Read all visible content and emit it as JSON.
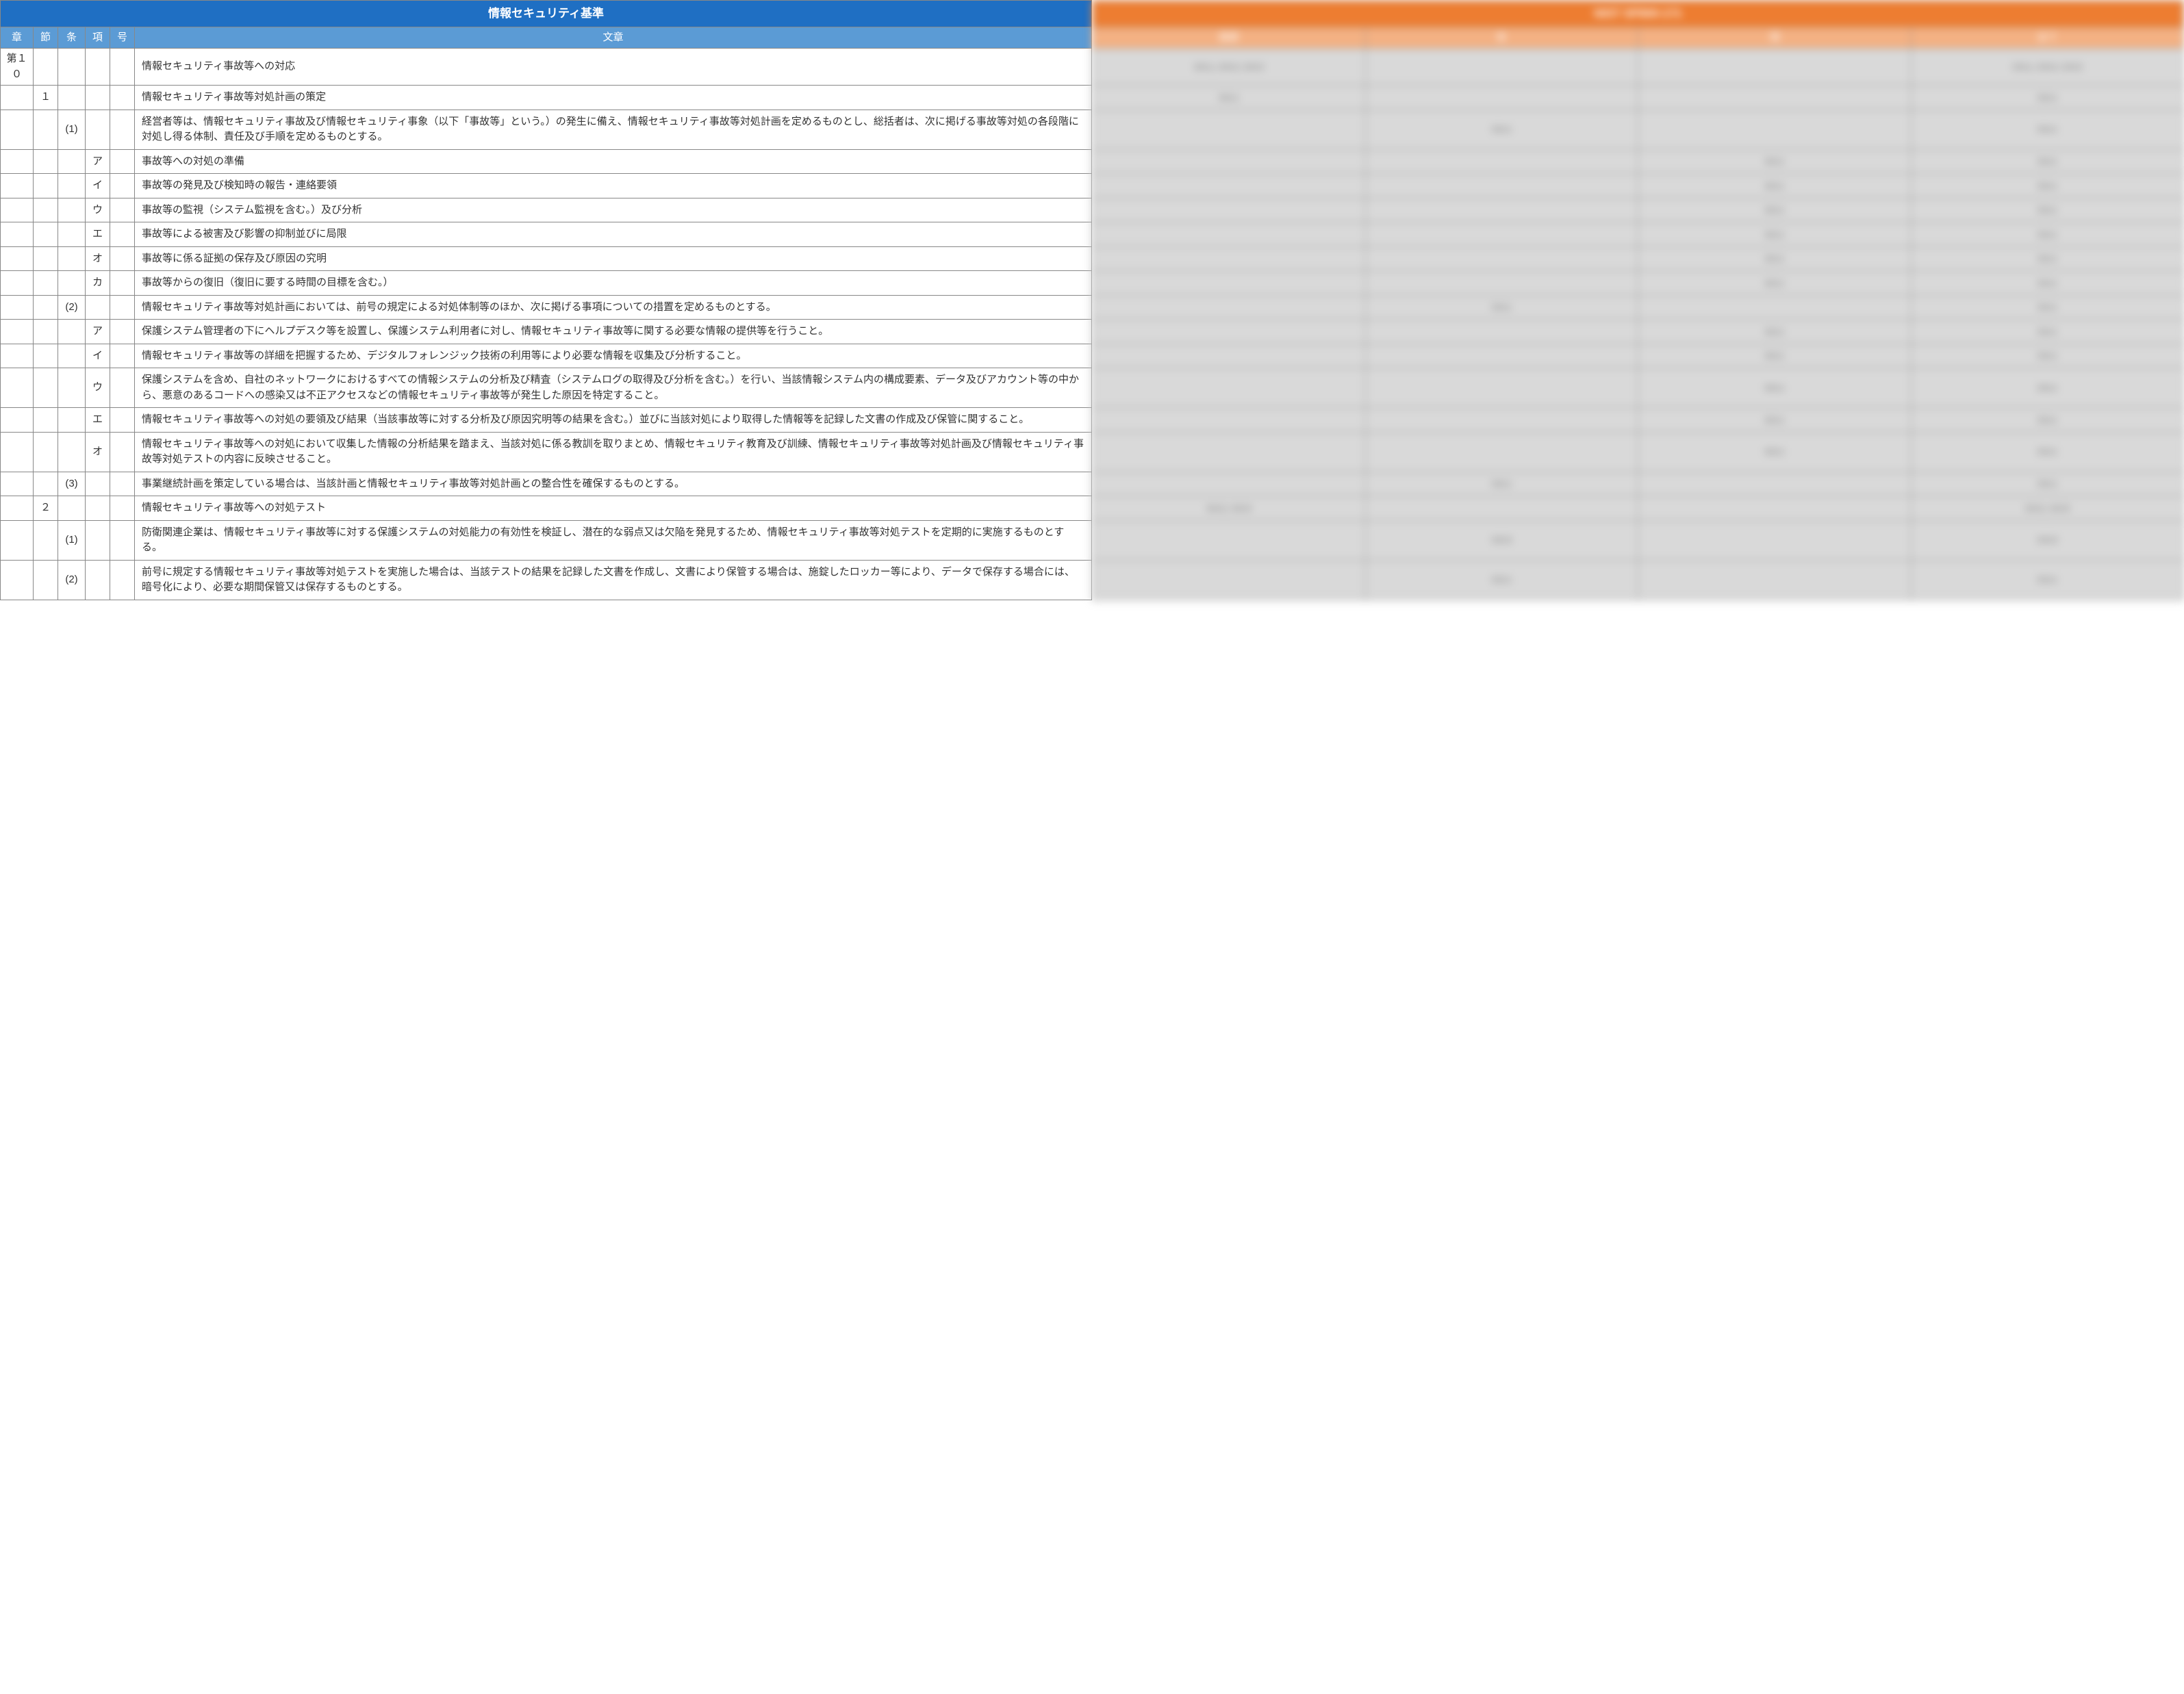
{
  "left": {
    "title": "情報セキュリティ基準",
    "headers": {
      "sho": "章",
      "setsu": "節",
      "jou": "条",
      "kou": "項",
      "gou": "号",
      "text": "文章"
    },
    "rows": [
      {
        "sho": "第１０",
        "setsu": "",
        "jou": "",
        "kou": "",
        "gou": "",
        "text": "情報セキュリティ事故等への対応"
      },
      {
        "sho": "",
        "setsu": "１",
        "jou": "",
        "kou": "",
        "gou": "",
        "text": "情報セキュリティ事故等対処計画の策定"
      },
      {
        "sho": "",
        "setsu": "",
        "jou": "(1)",
        "kou": "",
        "gou": "",
        "text": "経営者等は、情報セキュリティ事故及び情報セキュリティ事象（以下「事故等」という。）の発生に備え、情報セキュリティ事故等対処計画を定めるものとし、総括者は、次に掲げる事故等対処の各段階に対処し得る体制、責任及び手順を定めるものとする。"
      },
      {
        "sho": "",
        "setsu": "",
        "jou": "",
        "kou": "ア",
        "gou": "",
        "text": "事故等への対処の準備"
      },
      {
        "sho": "",
        "setsu": "",
        "jou": "",
        "kou": "イ",
        "gou": "",
        "text": "事故等の発見及び検知時の報告・連絡要領"
      },
      {
        "sho": "",
        "setsu": "",
        "jou": "",
        "kou": "ウ",
        "gou": "",
        "text": "事故等の監視（システム監視を含む。）及び分析"
      },
      {
        "sho": "",
        "setsu": "",
        "jou": "",
        "kou": "エ",
        "gou": "",
        "text": "事故等による被害及び影響の抑制並びに局限"
      },
      {
        "sho": "",
        "setsu": "",
        "jou": "",
        "kou": "オ",
        "gou": "",
        "text": "事故等に係る証拠の保存及び原因の究明"
      },
      {
        "sho": "",
        "setsu": "",
        "jou": "",
        "kou": "カ",
        "gou": "",
        "text": "事故等からの復旧（復旧に要する時間の目標を含む。）"
      },
      {
        "sho": "",
        "setsu": "",
        "jou": "(2)",
        "kou": "",
        "gou": "",
        "text": "情報セキュリティ事故等対処計画においては、前号の規定による対処体制等のほか、次に掲げる事項についての措置を定めるものとする。"
      },
      {
        "sho": "",
        "setsu": "",
        "jou": "",
        "kou": "ア",
        "gou": "",
        "text": "保護システム管理者の下にヘルプデスク等を設置し、保護システム利用者に対し、情報セキュリティ事故等に関する必要な情報の提供等を行うこと。"
      },
      {
        "sho": "",
        "setsu": "",
        "jou": "",
        "kou": "イ",
        "gou": "",
        "text": "情報セキュリティ事故等の詳細を把握するため、デジタルフォレンジック技術の利用等により必要な情報を収集及び分析すること。"
      },
      {
        "sho": "",
        "setsu": "",
        "jou": "",
        "kou": "ウ",
        "gou": "",
        "text": "保護システムを含め、自社のネットワークにおけるすべての情報システムの分析及び精査（システムログの取得及び分析を含む。）を行い、当該情報システム内の構成要素、データ及びアカウント等の中から、悪意のあるコードへの感染又は不正アクセスなどの情報セキュリティ事故等が発生した原因を特定すること。"
      },
      {
        "sho": "",
        "setsu": "",
        "jou": "",
        "kou": "エ",
        "gou": "",
        "text": "情報セキュリティ事故等への対処の要領及び結果（当該事故等に対する分析及び原因究明等の結果を含む。）並びに当該対処により取得した情報等を記録した文書の作成及び保管に関すること。"
      },
      {
        "sho": "",
        "setsu": "",
        "jou": "",
        "kou": "オ",
        "gou": "",
        "text": "情報セキュリティ事故等への対処において収集した情報の分析結果を踏まえ、当該対処に係る教訓を取りまとめ、情報セキュリティ教育及び訓練、情報セキュリティ事故等対処計画及び情報セキュリティ事故等対処テストの内容に反映させること。"
      },
      {
        "sho": "",
        "setsu": "",
        "jou": "(3)",
        "kou": "",
        "gou": "",
        "text": "事業継続計画を策定している場合は、当該計画と情報セキュリティ事故等対処計画との整合性を確保するものとする。"
      },
      {
        "sho": "",
        "setsu": "２",
        "jou": "",
        "kou": "",
        "gou": "",
        "text": "情報セキュリティ事故等への対処テスト"
      },
      {
        "sho": "",
        "setsu": "",
        "jou": "(1)",
        "kou": "",
        "gou": "",
        "text": "防衛関連企業は、情報セキュリティ事故等に対する保護システムの対処能力の有効性を検証し、潜在的な弱点又は欠陥を発見するため、情報セキュリティ事故等対処テストを定期的に実施するものとする。"
      },
      {
        "sho": "",
        "setsu": "",
        "jou": "(2)",
        "kou": "",
        "gou": "",
        "text": "前号に規定する情報セキュリティ事故等対処テストを実施した場合は、当該テストの結果を記録した文書を作成し、文書により保管する場合は、施錠したロッカー等により、データで保存する場合には、暗号化により、必要な期間保管又は保存するものとする。"
      }
    ]
  },
  "right": {
    "title": "NIST SP800-171",
    "headers": {
      "c1": "章節",
      "c2": "条",
      "c3": "項",
      "c4": "全て"
    },
    "rows": [
      {
        "c1": "3.6.1, 3.6.2, 3.6.3",
        "c2": "",
        "c3": "",
        "c4": "3.6.1, 3.6.2, 3.6.3"
      },
      {
        "c1": "3.6.1",
        "c2": "",
        "c3": "",
        "c4": "3.6.1"
      },
      {
        "c1": "",
        "c2": "3.6.1",
        "c3": "",
        "c4": "3.6.1"
      },
      {
        "c1": "",
        "c2": "",
        "c3": "3.6.1",
        "c4": "3.6.1"
      },
      {
        "c1": "",
        "c2": "",
        "c3": "3.6.1",
        "c4": "3.6.1"
      },
      {
        "c1": "",
        "c2": "",
        "c3": "3.6.1",
        "c4": "3.6.1"
      },
      {
        "c1": "",
        "c2": "",
        "c3": "3.6.1",
        "c4": "3.6.1"
      },
      {
        "c1": "",
        "c2": "",
        "c3": "3.6.1",
        "c4": "3.6.1"
      },
      {
        "c1": "",
        "c2": "",
        "c3": "3.6.1",
        "c4": "3.6.1"
      },
      {
        "c1": "",
        "c2": "3.6.1",
        "c3": "",
        "c4": "3.6.1"
      },
      {
        "c1": "",
        "c2": "",
        "c3": "3.6.1",
        "c4": "3.6.1"
      },
      {
        "c1": "",
        "c2": "",
        "c3": "3.6.1",
        "c4": "3.6.1"
      },
      {
        "c1": "",
        "c2": "",
        "c3": "3.6.1",
        "c4": "3.6.1"
      },
      {
        "c1": "",
        "c2": "",
        "c3": "3.6.1",
        "c4": "3.6.1"
      },
      {
        "c1": "",
        "c2": "",
        "c3": "3.6.1",
        "c4": "3.6.1"
      },
      {
        "c1": "",
        "c2": "3.6.1",
        "c3": "",
        "c4": "3.6.1"
      },
      {
        "c1": "3.6.2, 3.6.3",
        "c2": "",
        "c3": "",
        "c4": "3.6.2, 3.6.3"
      },
      {
        "c1": "",
        "c2": "3.6.3",
        "c3": "",
        "c4": "3.6.3"
      },
      {
        "c1": "",
        "c2": "3.6.1",
        "c3": "",
        "c4": "3.6.1"
      }
    ]
  },
  "colors": {
    "left_title_bg": "#1f6fc3",
    "left_hdr_bg": "#5b9bd5",
    "right_title_bg": "#ed7d31",
    "right_hdr_bg": "#f4b183",
    "right_cell_bg": "#d9d9d9",
    "border": "#888888"
  }
}
